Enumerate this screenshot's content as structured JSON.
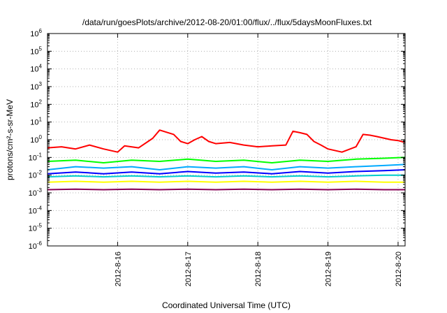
{
  "chart_data": {
    "type": "line",
    "title": "/data/run/goesPlots/archive/2012-08-20/01:00/flux/../flux/5daysMoonFluxes.txt",
    "xlabel": "Coordinated Universal Time (UTC)",
    "ylabel": "protons/cm²-s-sr-MeV",
    "yscale": "log",
    "ylim_exp": [
      -6,
      6
    ],
    "yticks": [
      {
        "base": "10",
        "exp": "-6"
      },
      {
        "base": "10",
        "exp": "-5"
      },
      {
        "base": "10",
        "exp": "-4"
      },
      {
        "base": "10",
        "exp": "-3"
      },
      {
        "base": "10",
        "exp": "-2"
      },
      {
        "base": "10",
        "exp": "-1"
      },
      {
        "base": "10",
        "exp": "0"
      },
      {
        "base": "10",
        "exp": "1"
      },
      {
        "base": "10",
        "exp": "2"
      },
      {
        "base": "10",
        "exp": "3"
      },
      {
        "base": "10",
        "exp": "4"
      },
      {
        "base": "10",
        "exp": "5"
      },
      {
        "base": "10",
        "exp": "6"
      }
    ],
    "xlim_days": [
      15.0,
      20.1
    ],
    "xticks": [
      {
        "label": "2012-8-16",
        "day": 16
      },
      {
        "label": "2012-8-17",
        "day": 17
      },
      {
        "label": "2012-8-18",
        "day": 18
      },
      {
        "label": "2012-8-19",
        "day": 19
      },
      {
        "label": "2012-8-20",
        "day": 20
      }
    ],
    "grid": true,
    "series": [
      {
        "color": "#ff0000",
        "x": [
          15.0,
          15.2,
          15.4,
          15.6,
          15.8,
          16.0,
          16.1,
          16.3,
          16.5,
          16.6,
          16.8,
          16.9,
          17.0,
          17.1,
          17.2,
          17.3,
          17.4,
          17.6,
          17.8,
          18.0,
          18.2,
          18.4,
          18.5,
          18.6,
          18.7,
          18.8,
          18.9,
          19.0,
          19.2,
          19.4,
          19.5,
          19.6,
          19.7,
          19.9,
          20.0,
          20.1
        ],
        "y": [
          0.35,
          0.4,
          0.3,
          0.5,
          0.3,
          0.2,
          0.45,
          0.35,
          1.2,
          3.5,
          2.0,
          0.8,
          0.6,
          1.0,
          1.5,
          0.8,
          0.6,
          0.7,
          0.5,
          0.4,
          0.45,
          0.5,
          3.0,
          2.5,
          2.0,
          0.8,
          0.5,
          0.3,
          0.2,
          0.4,
          2.0,
          1.8,
          1.5,
          1.0,
          0.9,
          0.7
        ]
      },
      {
        "color": "#00ff00",
        "x": [
          15.0,
          15.4,
          15.8,
          16.2,
          16.6,
          17.0,
          17.4,
          17.8,
          18.2,
          18.6,
          19.0,
          19.4,
          19.8,
          20.1
        ],
        "y": [
          0.06,
          0.07,
          0.05,
          0.07,
          0.06,
          0.08,
          0.06,
          0.07,
          0.05,
          0.07,
          0.06,
          0.08,
          0.09,
          0.1
        ]
      },
      {
        "color": "#00aaff",
        "x": [
          15.0,
          15.4,
          15.8,
          16.2,
          16.6,
          17.0,
          17.4,
          17.8,
          18.2,
          18.6,
          19.0,
          19.4,
          19.8,
          20.1
        ],
        "y": [
          0.02,
          0.03,
          0.025,
          0.03,
          0.02,
          0.03,
          0.025,
          0.03,
          0.02,
          0.03,
          0.025,
          0.03,
          0.035,
          0.04
        ]
      },
      {
        "color": "#0000ff",
        "x": [
          15.0,
          15.4,
          15.8,
          16.2,
          16.6,
          17.0,
          17.4,
          17.8,
          18.2,
          18.6,
          19.0,
          19.4,
          19.8,
          20.1
        ],
        "y": [
          0.012,
          0.015,
          0.012,
          0.015,
          0.012,
          0.016,
          0.013,
          0.015,
          0.012,
          0.016,
          0.013,
          0.016,
          0.018,
          0.02
        ]
      },
      {
        "color": "#00cccc",
        "x": [
          15.0,
          15.4,
          15.8,
          16.2,
          16.6,
          17.0,
          17.4,
          17.8,
          18.2,
          18.6,
          19.0,
          19.4,
          19.8,
          20.1
        ],
        "y": [
          0.008,
          0.009,
          0.008,
          0.009,
          0.008,
          0.009,
          0.008,
          0.009,
          0.008,
          0.009,
          0.008,
          0.009,
          0.01,
          0.01
        ]
      },
      {
        "color": "#ffff00",
        "x": [
          15.0,
          15.4,
          15.8,
          16.2,
          16.6,
          17.0,
          17.4,
          17.8,
          18.2,
          18.6,
          19.0,
          19.4,
          19.8,
          20.1
        ],
        "y": [
          0.004,
          0.0045,
          0.004,
          0.0045,
          0.004,
          0.0045,
          0.004,
          0.0045,
          0.004,
          0.0045,
          0.004,
          0.0045,
          0.004,
          0.004
        ]
      },
      {
        "color": "#880055",
        "x": [
          15.0,
          15.4,
          15.8,
          16.2,
          16.6,
          17.0,
          17.4,
          17.8,
          18.2,
          18.6,
          19.0,
          19.4,
          19.8,
          20.1
        ],
        "y": [
          0.0015,
          0.0016,
          0.0015,
          0.0016,
          0.0015,
          0.0016,
          0.0015,
          0.0016,
          0.0015,
          0.0016,
          0.0015,
          0.0016,
          0.0015,
          0.0015
        ]
      }
    ]
  }
}
